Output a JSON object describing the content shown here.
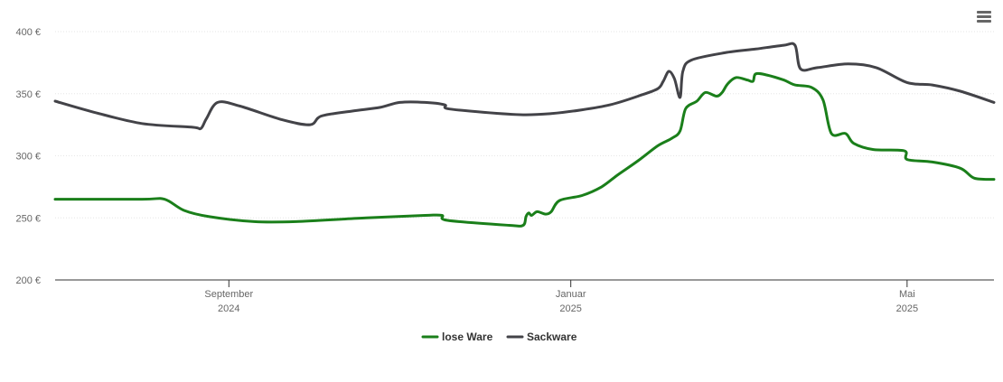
{
  "chart_data": {
    "type": "line",
    "title": "",
    "xlabel": "",
    "ylabel": "",
    "ylim": [
      200,
      400
    ],
    "xlim": [
      "2024-07-01",
      "2025-06-01"
    ],
    "y_ticks": [
      "200 €",
      "250 €",
      "300 €",
      "350 €",
      "400 €"
    ],
    "x_ticks": [
      {
        "date": "2024-09-01",
        "line1": "September",
        "line2": "2024"
      },
      {
        "date": "2025-01-01",
        "line1": "Januar",
        "line2": "2025"
      },
      {
        "date": "2025-05-01",
        "line1": "Mai",
        "line2": "2025"
      }
    ],
    "grid": true,
    "legend_position": "bottom-center",
    "series": [
      {
        "name": "lose Ware",
        "color": "#1a7f1a",
        "points": [
          [
            "2024-07-01",
            265
          ],
          [
            "2024-08-01",
            265
          ],
          [
            "2024-08-09",
            265
          ],
          [
            "2024-08-16",
            256
          ],
          [
            "2024-08-25",
            251
          ],
          [
            "2024-09-10",
            247
          ],
          [
            "2024-09-25",
            247
          ],
          [
            "2024-10-20",
            250
          ],
          [
            "2024-11-10",
            252
          ],
          [
            "2024-11-16",
            252
          ],
          [
            "2024-11-18",
            248
          ],
          [
            "2024-12-10",
            244
          ],
          [
            "2024-12-15",
            244
          ],
          [
            "2024-12-16",
            251
          ],
          [
            "2024-12-17",
            254
          ],
          [
            "2024-12-18",
            252
          ],
          [
            "2024-12-20",
            255
          ],
          [
            "2024-12-23",
            253
          ],
          [
            "2024-12-25",
            255
          ],
          [
            "2024-12-28",
            264
          ],
          [
            "2025-01-05",
            268
          ],
          [
            "2025-01-12",
            275
          ],
          [
            "2025-01-18",
            285
          ],
          [
            "2025-01-25",
            296
          ],
          [
            "2025-02-01",
            308
          ],
          [
            "2025-02-06",
            314
          ],
          [
            "2025-02-09",
            320
          ],
          [
            "2025-02-11",
            338
          ],
          [
            "2025-02-15",
            344
          ],
          [
            "2025-02-18",
            351
          ],
          [
            "2025-02-22",
            348
          ],
          [
            "2025-02-24",
            351
          ],
          [
            "2025-02-26",
            358
          ],
          [
            "2025-03-01",
            363
          ],
          [
            "2025-03-05",
            361
          ],
          [
            "2025-03-07",
            360
          ],
          [
            "2025-03-08",
            366
          ],
          [
            "2025-03-12",
            365
          ],
          [
            "2025-03-18",
            361
          ],
          [
            "2025-03-22",
            357
          ],
          [
            "2025-03-28",
            355
          ],
          [
            "2025-04-01",
            345
          ],
          [
            "2025-04-04",
            318
          ],
          [
            "2025-04-09",
            318
          ],
          [
            "2025-04-12",
            310
          ],
          [
            "2025-04-19",
            305
          ],
          [
            "2025-04-30",
            304
          ],
          [
            "2025-05-01",
            297
          ],
          [
            "2025-05-10",
            295
          ],
          [
            "2025-05-20",
            290
          ],
          [
            "2025-05-25",
            282
          ],
          [
            "2025-06-01",
            281
          ]
        ]
      },
      {
        "name": "Sackware",
        "color": "#434348",
        "points": [
          [
            "2024-07-01",
            344
          ],
          [
            "2024-07-15",
            335
          ],
          [
            "2024-08-01",
            326
          ],
          [
            "2024-08-19",
            323
          ],
          [
            "2024-08-22",
            322
          ],
          [
            "2024-08-24",
            330
          ],
          [
            "2024-08-28",
            343
          ],
          [
            "2024-09-05",
            340
          ],
          [
            "2024-09-20",
            329
          ],
          [
            "2024-09-30",
            325
          ],
          [
            "2024-10-04",
            332
          ],
          [
            "2024-10-15",
            336
          ],
          [
            "2024-10-25",
            339
          ],
          [
            "2024-11-01",
            343
          ],
          [
            "2024-11-10",
            343
          ],
          [
            "2024-11-17",
            341
          ],
          [
            "2024-11-18",
            338
          ],
          [
            "2024-12-01",
            335
          ],
          [
            "2024-12-15",
            333
          ],
          [
            "2024-12-25",
            334
          ],
          [
            "2025-01-05",
            337
          ],
          [
            "2025-01-15",
            341
          ],
          [
            "2025-01-25",
            348
          ],
          [
            "2025-02-01",
            354
          ],
          [
            "2025-02-03",
            360
          ],
          [
            "2025-02-05",
            368
          ],
          [
            "2025-02-07",
            362
          ],
          [
            "2025-02-09",
            347
          ],
          [
            "2025-02-10",
            368
          ],
          [
            "2025-02-13",
            377
          ],
          [
            "2025-02-25",
            383
          ],
          [
            "2025-03-08",
            386
          ],
          [
            "2025-03-18",
            389
          ],
          [
            "2025-03-22",
            389
          ],
          [
            "2025-03-24",
            370
          ],
          [
            "2025-03-30",
            371
          ],
          [
            "2025-04-10",
            374
          ],
          [
            "2025-04-20",
            371
          ],
          [
            "2025-05-01",
            359
          ],
          [
            "2025-05-10",
            357
          ],
          [
            "2025-05-20",
            352
          ],
          [
            "2025-06-01",
            343
          ]
        ]
      }
    ]
  },
  "ui": {
    "menu_icon": "hamburger-menu-icon"
  }
}
